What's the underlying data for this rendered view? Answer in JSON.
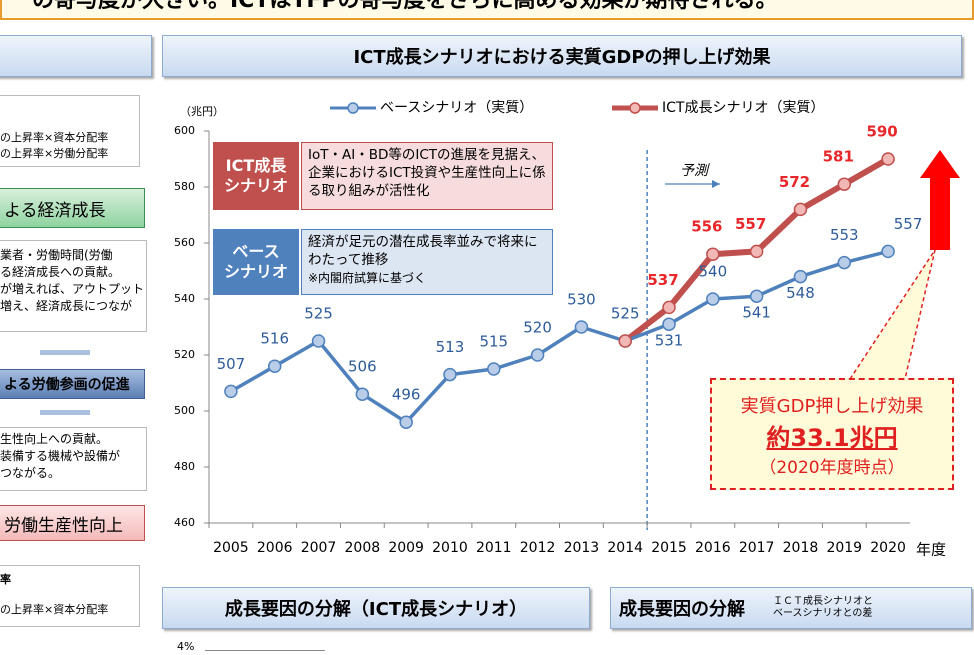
{
  "banner": {
    "text": "の寄与度が大きい。ICTはTFPの寄与度をさらに高める効果が期待される。"
  },
  "left_panel": {
    "lines_top": [
      "の上昇率×資本分配率",
      "の上昇率×労働分配率"
    ],
    "box1": "よる経済成長",
    "lines_mid": [
      "業者・労働時間(労働",
      "る経済成長への貢献。",
      "が増えれば、アウトプット",
      "増え、経済成長につなが"
    ],
    "box2": "よる労働参画の促進",
    "lines_low": [
      "生性向上への貢献。",
      "装備する機械や設備が",
      "つながる。"
    ],
    "box3": "労働生産性向上",
    "lines_bottom": [
      "率",
      "の上昇率×資本分配率"
    ]
  },
  "chart_data": {
    "type": "line",
    "title": "ICT成長シナリオにおける実質GDPの押し上げ効果",
    "y_unit": "（兆円）",
    "x_unit": "年度",
    "categories": [
      "2005",
      "2006",
      "2007",
      "2008",
      "2009",
      "2010",
      "2011",
      "2012",
      "2013",
      "2014",
      "2015",
      "2016",
      "2017",
      "2018",
      "2019",
      "2020"
    ],
    "series": [
      {
        "name": "ベースシナリオ（実質）",
        "color": "#4f81bd",
        "values": [
          507,
          516,
          525,
          506,
          496,
          513,
          515,
          520,
          530,
          525,
          531,
          540,
          541,
          548,
          553,
          557
        ]
      },
      {
        "name": "ICT成長シナリオ（実質）",
        "color": "#c0504d",
        "values": [
          null,
          null,
          null,
          null,
          null,
          null,
          null,
          null,
          null,
          525,
          537,
          556,
          557,
          572,
          581,
          590
        ]
      }
    ],
    "ylim": [
      460,
      600
    ],
    "yticks": [
      460,
      480,
      500,
      520,
      540,
      560,
      580,
      600
    ],
    "grid": false,
    "forecast_label": "予測"
  },
  "scenarios": [
    {
      "label": "ICT成長\nシナリオ",
      "text": "IoT・AI・BD等のICTの進展を見据え、企業におけるICT投資や生産性向上に係る取り組みが活性化"
    },
    {
      "label": "ベース\nシナリオ",
      "text": "経済が足元の潜在成長率並みで将来にわたって推移",
      "note": "※内閣府試算に基づく"
    }
  ],
  "callout": {
    "line1": "実質GDP押し上げ効果",
    "line2": "約33.1兆円",
    "line3": "（2020年度時点）"
  },
  "bottom": {
    "title1": "成長要因の分解（ICT成長シナリオ）",
    "title2": "成長要因の分解",
    "note": [
      "ＩＣＴ成長シナリオと",
      "ベースシナリオとの差"
    ],
    "axis_top": "4%"
  }
}
